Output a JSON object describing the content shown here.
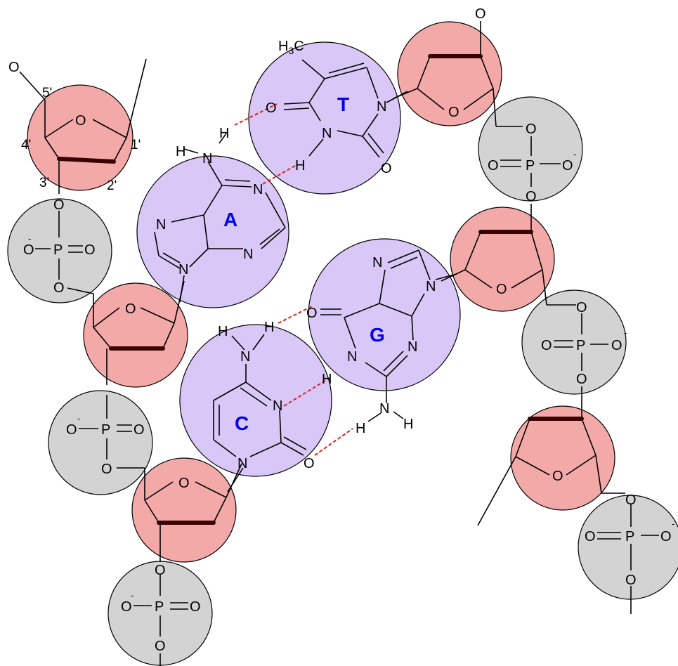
{
  "colors": {
    "sugar": "#f4a9a9",
    "phosphate": "#d3d3d3",
    "base": "#d9c8f7",
    "base_letter": "#0000ee",
    "hbond": "#e02020"
  },
  "bases": {
    "adenine": "A",
    "thymine": "T",
    "guanine": "G",
    "cytosine": "C"
  },
  "atoms": {
    "oxygen": "O",
    "phosphorus": "P",
    "nitrogen": "N",
    "hydrogen": "H",
    "methyl": "H3C",
    "charge": "-"
  },
  "positions": {
    "c1": "1'",
    "c2": "2'",
    "c3": "3'",
    "c4": "4'",
    "c5": "5'"
  }
}
